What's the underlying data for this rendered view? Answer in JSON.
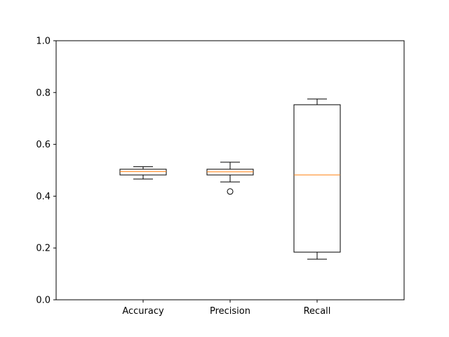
{
  "chart_data": {
    "type": "boxplot",
    "categories": [
      "Accuracy",
      "Precision",
      "Recall"
    ],
    "series": [
      {
        "name": "Accuracy",
        "whisker_low": 0.466,
        "q1": 0.482,
        "median": 0.495,
        "q3": 0.504,
        "whisker_high": 0.514,
        "outliers": []
      },
      {
        "name": "Precision",
        "whisker_low": 0.455,
        "q1": 0.482,
        "median": 0.494,
        "q3": 0.504,
        "whisker_high": 0.531,
        "outliers": [
          0.418
        ]
      },
      {
        "name": "Recall",
        "whisker_low": 0.157,
        "q1": 0.184,
        "median": 0.482,
        "q3": 0.753,
        "whisker_high": 0.775,
        "outliers": []
      }
    ],
    "title": "",
    "xlabel": "",
    "ylabel": "",
    "ylim": [
      0,
      1
    ],
    "yticks": [
      "0.0",
      "0.2",
      "0.4",
      "0.6",
      "0.8",
      "1.0"
    ],
    "grid": false,
    "colors": {
      "box": "#000000",
      "median": "#ff7f0e",
      "axes": "#000000"
    }
  }
}
